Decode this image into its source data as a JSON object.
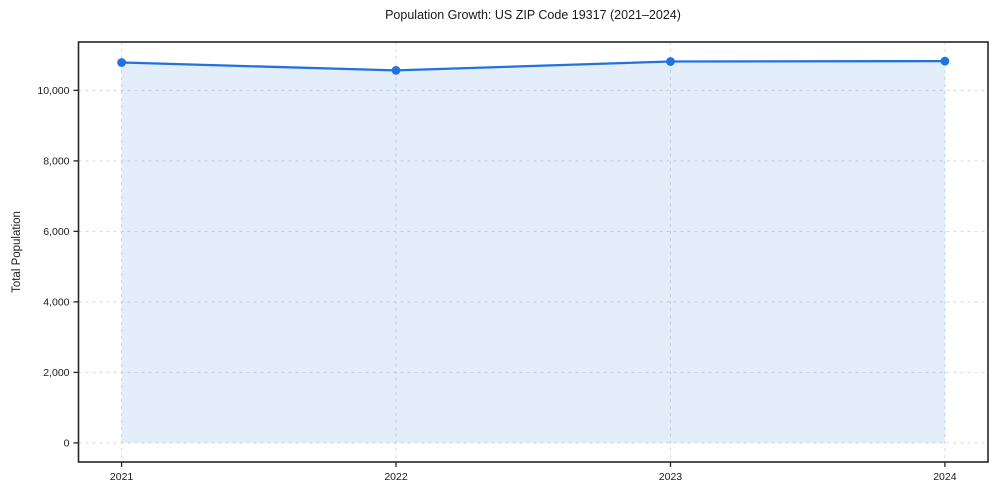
{
  "chart_data": {
    "type": "line",
    "title": "Population Growth: US ZIP Code 19317 (2021–2024)",
    "xlabel": "",
    "ylabel": "Total Population",
    "categories": [
      2021,
      2022,
      2023,
      2024
    ],
    "series": [
      {
        "name": "Total Population",
        "values": [
          10790,
          10565,
          10820,
          10830
        ]
      }
    ],
    "area_fill_to_zero": true,
    "markers": true,
    "grid": "both, dashed",
    "legend": "none",
    "xlim": [
      2020.843,
      2024.157
    ],
    "ylim": [
      -542,
      11372
    ],
    "yticks": [
      0,
      2000,
      4000,
      6000,
      8000,
      10000
    ],
    "ytick_labels": [
      "0",
      "2,000",
      "4,000",
      "6,000",
      "8,000",
      "10,000"
    ],
    "xtick_labels": [
      "2021",
      "2022",
      "2023",
      "2024"
    ],
    "colors": {
      "line": "#2271e0",
      "marker": "#2271e0",
      "area_fill": "#2271e0",
      "area_fill_opacity": 0.12,
      "grid": "#d9d9d9",
      "spine": "#262626",
      "tick": "#262626",
      "text": "#1a1a1a",
      "background": "#ffffff"
    }
  }
}
